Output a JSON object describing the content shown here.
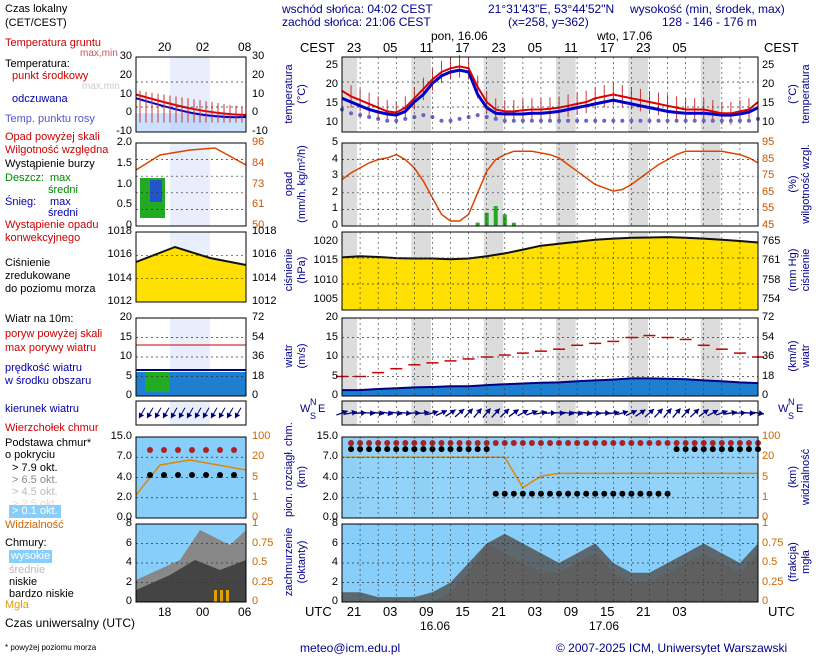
{
  "header": {
    "sunrise": "wschód słońca: 04:02 CEST",
    "sunset": "zachód słońca: 21:06 CEST",
    "coords": "21°31'43\"E, 53°44'52\"N",
    "grid": "(x=258,  y=362)",
    "height_label": "wysokość (min, środek, max)",
    "height_values": "128 - 146 - 176 m"
  },
  "top_axis": {
    "tz": "CEST",
    "day1": "pon, 16.06",
    "day2": "wto, 17.06",
    "hours": [
      "23",
      "05",
      "11",
      "17",
      "23",
      "05",
      "11",
      "17",
      "23",
      "05"
    ]
  },
  "bottom_axis": {
    "tz": "UTC",
    "hours": [
      "21",
      "03",
      "09",
      "15",
      "21",
      "03",
      "09",
      "15",
      "21",
      "03"
    ],
    "day1": "16.06",
    "day2": "17.06"
  },
  "legend_axis": {
    "local_label": "Czas lokalny\n(CET/CEST)",
    "local_hours": [
      "20",
      "02",
      "08"
    ],
    "utc_hours": [
      "18",
      "00",
      "06"
    ],
    "utc_label": "Czas uniwersalny (UTC)"
  },
  "legend": {
    "temp_soil": "Temperatura gruntu",
    "temp_soil_mm": "max,min",
    "temperature": "Temperatura:",
    "mid_point": "punkt środkowy",
    "maxmin": "max,min",
    "felt": "odczuwana",
    "dew": "Temp. punktu rosy",
    "precip_above": "Opad powyżej skali",
    "humidity": "Wilgotność względna",
    "storm": "Wystąpienie burzy",
    "rain": "Deszcz:",
    "snow": "Śnieg:",
    "max": "max",
    "mean": "średni",
    "conv": "Wystąpienie opadu konwekcyjnego",
    "pressure": "Ciśnienie zredukowane do poziomu morza",
    "wind10": "Wiatr na 10m:",
    "gust_above": "poryw powyżej skali",
    "gust_max": "max porywy wiatru",
    "wind_mean": "prędkość wiatru w środku obszaru",
    "wind_dir": "kierunek wiatru",
    "cb": "Wierzchołek chmur",
    "cloudbase": "Podstawa chmur* o pokryciu",
    "okt": [
      "> 7.9 okt.",
      "> 6.5 okt.",
      "> 4.5 okt.",
      "> 2.5 okt.",
      "> 0.1 okt."
    ],
    "visibility": "Widzialność",
    "clouds": "Chmury:",
    "c_high": "wysokie",
    "c_mid": "średnie",
    "c_low": "niskie",
    "c_vlow": "bardzo niskie",
    "fog": "Mgła",
    "footnote": "* powyżej poziomu morza"
  },
  "panel_labels": {
    "temp_l": "temperatura\n(°C)",
    "temp_r": "(°C)\ntemperatura",
    "precip_l": "opad\n(mm/h, kg/m²/h)",
    "precip_r": "(%)\nwilgotność wzgl.",
    "press_l": "ciśnienie\n(hPa)",
    "press_r": "(mm Hg)\nciśnienie",
    "wind_l": "wiatr\n(m/s)",
    "wind_r": "(km/h)\nwiatr",
    "cloudbase_l": "pion. rozciągł. chm.\n(km)",
    "cloudbase_r": "(km)\nwidzialność",
    "cover_l": "zachmurzenie\n(oktanty)",
    "cover_r": "(frakcja)\nmgła"
  },
  "axes": {
    "temp_left": [
      "25",
      "20",
      "15",
      "10"
    ],
    "temp_right": [
      "25",
      "20",
      "15",
      "10"
    ],
    "precip_left": [
      "5",
      "4",
      "3",
      "2",
      "1",
      "0"
    ],
    "precip_right": [
      "95",
      "85",
      "75",
      "65",
      "55",
      "45"
    ],
    "press_left": [
      "1020",
      "1015",
      "1010",
      "1005"
    ],
    "press_right": [
      "765",
      "761",
      "758",
      "754"
    ],
    "wind_left": [
      "20",
      "15",
      "10",
      "5",
      "0"
    ],
    "wind_right": [
      "72",
      "54",
      "36",
      "18",
      "0"
    ],
    "cb_left": [
      "15.0",
      "7.0",
      "4.0",
      "2.0",
      "0.0"
    ],
    "cb_right": [
      "100",
      "20",
      "5",
      "1",
      "0"
    ],
    "cover_left": [
      "8",
      "6",
      "4",
      "2",
      "0"
    ],
    "cover_right": [
      "1",
      "0.75",
      "0.5",
      "0.25",
      "0"
    ],
    "leg_temp_l": [
      "30",
      "20",
      "10",
      "0",
      "-10"
    ],
    "leg_temp_r": [
      "30",
      "20",
      "10",
      "0",
      "-10"
    ],
    "leg_precip_l": [
      "2.0",
      "1.5",
      "1.0",
      "0.5",
      "0"
    ],
    "leg_precip_r": [
      "96",
      "84",
      "73",
      "61",
      "50"
    ],
    "leg_press_l": [
      "1018",
      "1016",
      "1014",
      "1012"
    ],
    "leg_press_r": [
      "1018",
      "1016",
      "1014",
      "1012"
    ],
    "leg_wind_l": [
      "20",
      "15",
      "10",
      "5",
      "0"
    ],
    "leg_wind_r": [
      "72",
      "54",
      "36",
      "18",
      "0"
    ],
    "leg_cb_l": [
      "15.0",
      "7.0",
      "4.0",
      "2.0",
      "0.0"
    ],
    "leg_cb_r": [
      "100",
      "20",
      "5",
      "1",
      "0"
    ],
    "leg_cov_l": [
      "8",
      "6",
      "4",
      "2",
      "0"
    ],
    "leg_cov_r": [
      "1",
      "0.75",
      "0.5",
      "0.25",
      "0"
    ]
  },
  "footer": {
    "email": "meteo@icm.edu.pl",
    "copyright": "© 2007-2025 ICM, Uniwersytet Warszawski"
  },
  "colors": {
    "title": "#00008b",
    "axis_red": "#cc0000",
    "night": "#d9d9d9",
    "pressure": "#ffe000",
    "sky": "#87cefa"
  },
  "chart_data": [
    {
      "type": "line",
      "title": "temperatura",
      "ylim": [
        8,
        28
      ],
      "x_hours": [
        0,
        3,
        6,
        9,
        12,
        15,
        18,
        21,
        24,
        27,
        30,
        33,
        36,
        39,
        42,
        45,
        48,
        51,
        54,
        57,
        60,
        63,
        66,
        69,
        72,
        75,
        78,
        81,
        84,
        87,
        90,
        93,
        96,
        99,
        102,
        105,
        108,
        111,
        114,
        117,
        120,
        123,
        126,
        129,
        132,
        135,
        138
      ],
      "series": [
        {
          "name": "punkt środkowy",
          "values": [
            19,
            17.5,
            16.5,
            15.5,
            14.5,
            13.5,
            13.2,
            14.5,
            17,
            19.5,
            22,
            24,
            25,
            25.5,
            25,
            20,
            16,
            14,
            13.5,
            13.5,
            13.8,
            14,
            14,
            14.2,
            14.5,
            15,
            15.5,
            16,
            17,
            17.5,
            18,
            17.5,
            17,
            16.5,
            16,
            15.5,
            15,
            14.5,
            14,
            14,
            14,
            13.5,
            13,
            13,
            13.5,
            14,
            16
          ]
        },
        {
          "name": "odczuwana",
          "values": [
            17,
            16,
            15,
            14,
            13.3,
            12.8,
            12.5,
            13.5,
            16,
            18,
            21,
            23,
            24,
            24.5,
            24,
            18,
            14.5,
            13,
            12.8,
            12.8,
            12.8,
            13,
            13,
            13.2,
            13.5,
            14,
            14.5,
            15,
            15.5,
            16,
            16.5,
            16,
            15.5,
            15,
            14.5,
            14,
            13.5,
            13.2,
            13,
            13,
            13,
            12.8,
            12.5,
            12.5,
            12.8,
            13.3,
            14.5
          ]
        },
        {
          "name": "Temp. punktu rosy",
          "values": [
            14,
            13,
            12.5,
            12,
            11.5,
            11,
            11,
            11.5,
            12,
            12.5,
            12,
            11,
            11,
            11.5,
            12,
            12.5,
            12,
            11.5,
            11,
            11,
            11,
            11,
            11,
            11,
            11,
            11,
            11,
            11,
            11,
            11,
            11,
            11,
            11,
            11,
            11,
            11,
            11,
            11,
            11,
            11,
            11,
            11,
            11,
            11,
            11,
            11,
            11.5
          ]
        }
      ]
    },
    {
      "type": "line",
      "title": "wilgotność wzgl.",
      "ylim": [
        45,
        95
      ],
      "x_hours": [
        0,
        3,
        6,
        9,
        12,
        15,
        18,
        21,
        24,
        27,
        30,
        33,
        36,
        39,
        42,
        45,
        48,
        51,
        54,
        57,
        60,
        63,
        66,
        69,
        72,
        75,
        78,
        81,
        84,
        87,
        90,
        93,
        96,
        99,
        102,
        105,
        108,
        111,
        114,
        117,
        120,
        123,
        126,
        129,
        132,
        135,
        138
      ],
      "series": [
        {
          "name": "wilgotność",
          "values": [
            73,
            77,
            80,
            83,
            85,
            86,
            88,
            85,
            80,
            72,
            62,
            52,
            48,
            48,
            52,
            65,
            78,
            85,
            88,
            90,
            90,
            90,
            89,
            88,
            86,
            82,
            78,
            74,
            70,
            68,
            66,
            67,
            70,
            74,
            78,
            82,
            85,
            88,
            90,
            90,
            90,
            90,
            90,
            89,
            88,
            86,
            83
          ]
        },
        {
          "name": "opad",
          "values": [
            0,
            0,
            0,
            0,
            0,
            0,
            0,
            0,
            0,
            0,
            0,
            0,
            0,
            0,
            0,
            0.2,
            0.8,
            1.2,
            0.7,
            0.2,
            0,
            0,
            0,
            0,
            0,
            0,
            0,
            0,
            0,
            0,
            0,
            0,
            0,
            0,
            0,
            0,
            0,
            0,
            0,
            0,
            0,
            0,
            0,
            0,
            0,
            0,
            0
          ]
        }
      ]
    },
    {
      "type": "area",
      "title": "ciśnienie",
      "ylim": [
        1002,
        1022
      ],
      "x_hours": [
        0,
        6,
        12,
        18,
        24,
        30,
        36,
        42,
        48,
        54,
        60,
        66,
        72,
        78,
        84,
        90,
        96,
        102,
        108,
        114,
        120,
        126,
        132,
        138
      ],
      "series": [
        {
          "name": "ciśnienie",
          "values": [
            1015.5,
            1015.8,
            1015.6,
            1015.3,
            1015.2,
            1015.2,
            1015,
            1015.2,
            1015.8,
            1016.5,
            1017.5,
            1018.5,
            1019,
            1019.5,
            1020,
            1020.3,
            1020.5,
            1020.6,
            1020.7,
            1020.5,
            1020.3,
            1020,
            1019.7,
            1019.3
          ]
        }
      ]
    },
    {
      "type": "line",
      "title": "wiatr",
      "ylim": [
        0,
        20
      ],
      "x_hours": [
        0,
        6,
        12,
        18,
        24,
        30,
        36,
        42,
        48,
        54,
        60,
        66,
        72,
        78,
        84,
        90,
        96,
        102,
        108,
        114,
        120,
        126,
        132,
        138
      ],
      "series": [
        {
          "name": "max porywy wiatru",
          "values": [
            5,
            5,
            6,
            7,
            8,
            8.5,
            9,
            9.5,
            10,
            10.5,
            11,
            11.5,
            12,
            13,
            13.5,
            14,
            15,
            15.5,
            15,
            14.5,
            13,
            12,
            11,
            10
          ]
        },
        {
          "name": "prędkość wiatru",
          "values": [
            1.5,
            1.5,
            1.8,
            2,
            2.2,
            2.3,
            2.5,
            2.5,
            2.8,
            3,
            3.2,
            3.4,
            3.5,
            3.8,
            4,
            4.2,
            4.5,
            4.5,
            4.4,
            4.3,
            4,
            3.8,
            3.5,
            3.3
          ]
        }
      ]
    },
    {
      "type": "line",
      "title": "widzialność",
      "ylim": [
        0,
        100
      ],
      "x_hours": [
        0,
        6,
        12,
        18,
        24,
        30,
        36,
        42,
        48,
        54,
        60,
        66,
        72,
        78,
        84,
        90,
        96,
        102,
        108,
        114,
        120,
        126,
        132,
        138
      ],
      "series": [
        {
          "name": "Widzialność",
          "values": [
            20,
            20,
            20,
            20,
            20,
            20,
            20,
            20,
            20,
            20,
            3,
            6,
            8,
            8,
            8,
            8,
            8,
            8,
            8,
            8,
            8,
            8,
            8,
            8
          ]
        }
      ]
    },
    {
      "type": "area",
      "title": "zachmurzenie",
      "ylim": [
        0,
        8
      ],
      "x_hours": [
        0,
        6,
        12,
        18,
        24,
        30,
        36,
        42,
        48,
        54,
        60,
        66,
        72,
        78,
        84,
        90,
        96,
        102,
        108,
        114,
        120,
        126,
        132,
        138
      ],
      "series": [
        {
          "name": "niskie",
          "values": [
            1,
            1,
            0.5,
            0.5,
            0.5,
            1,
            2,
            4,
            6,
            7,
            6,
            5,
            4,
            5,
            6,
            4,
            3,
            3,
            4,
            5,
            6,
            5,
            4,
            6
          ]
        },
        {
          "name": "średnie",
          "values": [
            0,
            0,
            0,
            0,
            0,
            0,
            1,
            3,
            6,
            5,
            4,
            3,
            3,
            4,
            5,
            3,
            2,
            2,
            3,
            4,
            5,
            4,
            3,
            5
          ]
        }
      ]
    }
  ]
}
